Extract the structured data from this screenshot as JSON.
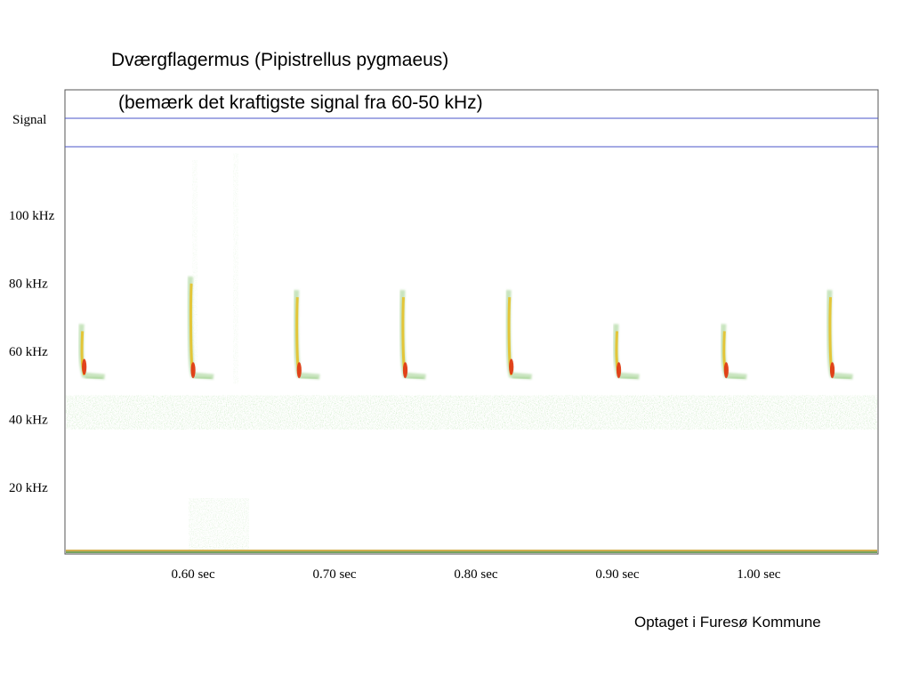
{
  "page": {
    "title": "Dværgflagermus (Pipistrellus pygmaeus)",
    "subtitle": "(bemærk det kraftigste signal fra 60-50 kHz)",
    "footnote": "Optaget i Furesø Kommune"
  },
  "colors": {
    "frame": "#555555",
    "signal_lines": "#4a55c8",
    "noise": "#b7dcb0",
    "call_low": "#9ccf8a",
    "call_mid": "#e8c020",
    "call_high": "#e03a14",
    "baseline": "#c8a030"
  },
  "chart_data": {
    "type": "heatmap",
    "signal_label": "Signal",
    "y_ticks": [
      {
        "value": 100,
        "label": "100 kHz"
      },
      {
        "value": 80,
        "label": "80 kHz"
      },
      {
        "value": 60,
        "label": "60 kHz"
      },
      {
        "value": 40,
        "label": "40 kHz"
      },
      {
        "value": 20,
        "label": "20 kHz"
      }
    ],
    "x_ticks": [
      {
        "value": 0.6,
        "label": "0.60 sec"
      },
      {
        "value": 0.7,
        "label": "0.70 sec"
      },
      {
        "value": 0.8,
        "label": "0.80 sec"
      },
      {
        "value": 0.9,
        "label": "0.90 sec"
      },
      {
        "value": 1.0,
        "label": "1.00 sec"
      }
    ],
    "xlim": [
      0.51,
      1.085
    ],
    "ylim": [
      0,
      120
    ],
    "calls": [
      {
        "time": 0.523,
        "f_start": 68,
        "f_end": 53,
        "peak_f": 57
      },
      {
        "time": 0.6,
        "f_start": 82,
        "f_end": 53,
        "peak_f": 56
      },
      {
        "time": 0.675,
        "f_start": 78,
        "f_end": 53,
        "peak_f": 56
      },
      {
        "time": 0.75,
        "f_start": 78,
        "f_end": 53,
        "peak_f": 56
      },
      {
        "time": 0.825,
        "f_start": 78,
        "f_end": 53,
        "peak_f": 57
      },
      {
        "time": 0.901,
        "f_start": 68,
        "f_end": 53,
        "peak_f": 56
      },
      {
        "time": 0.977,
        "f_start": 68,
        "f_end": 53,
        "peak_f": 56
      },
      {
        "time": 1.052,
        "f_start": 78,
        "f_end": 53,
        "peak_f": 56
      }
    ],
    "noise_band": {
      "f_low": 37,
      "f_high": 47
    }
  }
}
